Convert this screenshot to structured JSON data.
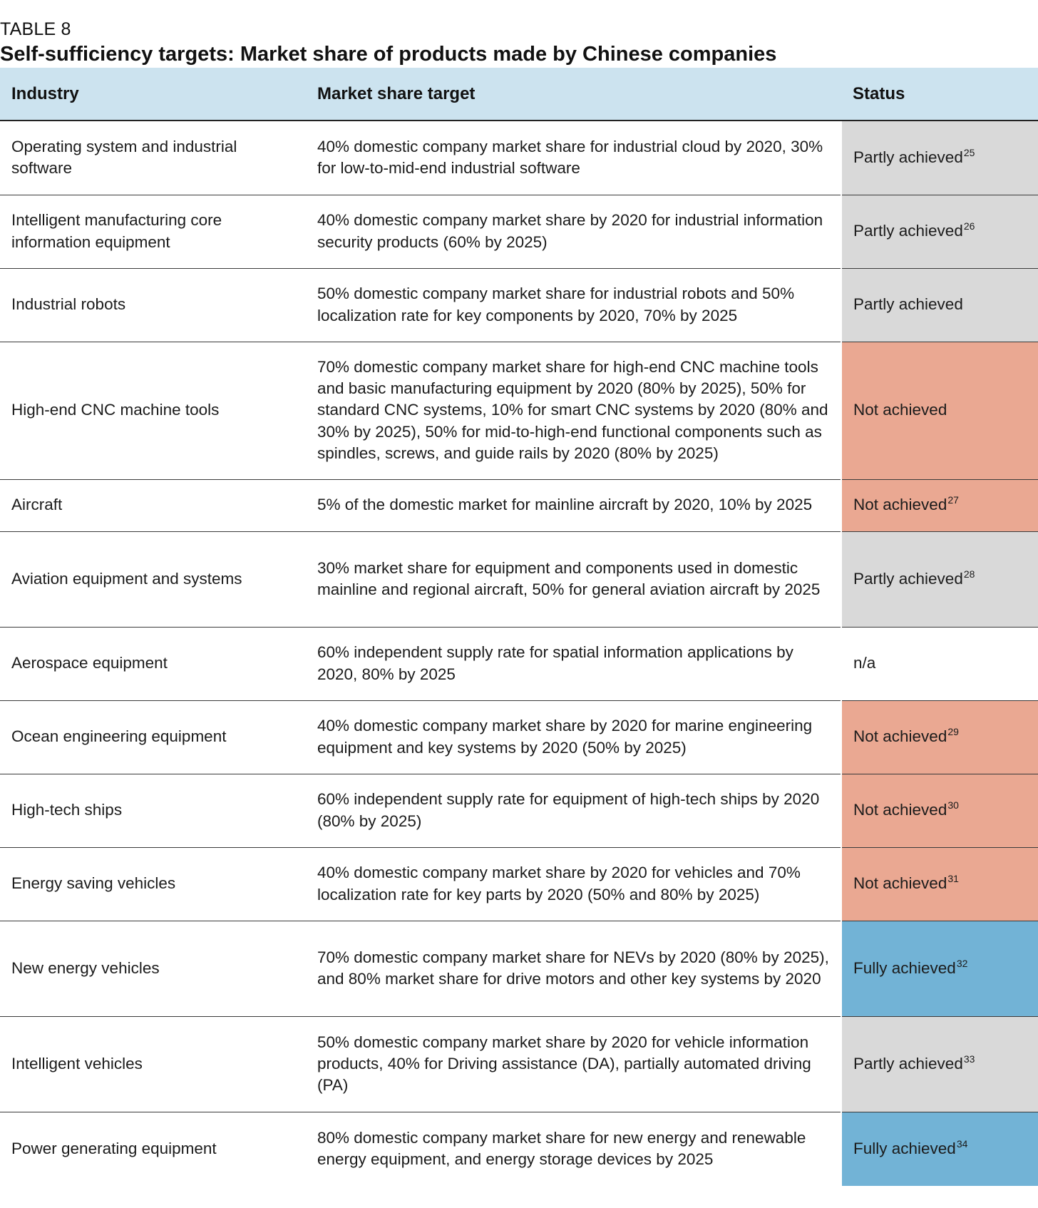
{
  "header": {
    "kicker": "TABLE 8",
    "title": "Self-sufficiency targets: Market share of products made by Chinese companies"
  },
  "table": {
    "columns": [
      "Industry",
      "Market share target",
      "Status"
    ],
    "rows": [
      {
        "industry": "Operating system and industrial software",
        "target": "40% domestic company market share for industrial cloud by 2020, 30% for low-to-mid-end industrial software",
        "status": "Partly achieved",
        "note": "25",
        "status_color": "#d9d9d9"
      },
      {
        "industry": "Intelligent manufacturing core information equipment",
        "target": "40% domestic company market share by 2020 for industrial information security products (60% by 2025)",
        "status": "Partly achieved",
        "note": "26",
        "status_color": "#d9d9d9"
      },
      {
        "industry": "Industrial robots",
        "target": "50% domestic company market share for industrial robots and 50% localization rate for key components by 2020, 70% by 2025",
        "status": "Partly achieved",
        "note": "",
        "status_color": "#d9d9d9"
      },
      {
        "industry": "High-end CNC machine tools",
        "target": "70% domestic company market share for high-end CNC machine tools and basic manufacturing equipment by 2020 (80% by 2025), 50% for standard CNC systems, 10% for smart CNC systems by 2020 (80% and 30% by 2025), 50% for mid-to-high-end functional components such as spindles, screws, and guide rails by 2020 (80% by 2025)",
        "status": "Not achieved",
        "note": "",
        "status_color": "#eaa892"
      },
      {
        "industry": "Aircraft",
        "target": "5% of the domestic market for mainline aircraft by 2020, 10% by 2025",
        "status": "Not achieved",
        "note": "27",
        "status_color": "#eaa892"
      },
      {
        "industry": "Aviation equipment and systems",
        "target": "30% market share for equipment and components used in domestic mainline and regional aircraft, 50% for general aviation aircraft by 2025",
        "status": "Partly achieved",
        "note": "28",
        "status_color": "#d9d9d9"
      },
      {
        "industry": "Aerospace equipment",
        "target": "60% independent supply rate for spatial information applications by 2020, 80% by 2025",
        "status": "n/a",
        "note": "",
        "status_color": "#ffffff"
      },
      {
        "industry": "Ocean engineering equipment",
        "target": "40% domestic company market share by 2020 for marine engineering equipment and key systems by 2020 (50% by 2025)",
        "status": "Not achieved",
        "note": "29",
        "status_color": "#eaa892"
      },
      {
        "industry": "High-tech ships",
        "target": "60% independent supply rate for equipment of high-tech ships by 2020 (80% by 2025)",
        "status": "Not achieved",
        "note": "30",
        "status_color": "#eaa892"
      },
      {
        "industry": "Energy saving vehicles",
        "target": "40% domestic company market share by 2020 for vehicles and 70% localization rate for key parts by 2020 (50% and 80% by 2025)",
        "status": "Not achieved",
        "note": "31",
        "status_color": "#eaa892"
      },
      {
        "industry": "New energy vehicles",
        "target": "70% domestic company market share for NEVs by 2020 (80% by 2025), and 80% market share for drive motors and other key systems by 2020",
        "status": "Fully achieved",
        "note": "32",
        "status_color": "#72b3d6"
      },
      {
        "industry": "Intelligent vehicles",
        "target": "50% domestic company market share by 2020 for vehicle information products, 40% for Driving assistance (DA), partially automated driving (PA)",
        "status": "Partly achieved",
        "note": "33",
        "status_color": "#d9d9d9"
      },
      {
        "industry": "Power generating equipment",
        "target": "80% domestic company market share for new energy and renewable energy equipment, and energy storage devices by 2025",
        "status": "Fully achieved",
        "note": "34",
        "status_color": "#72b3d6"
      }
    ]
  }
}
